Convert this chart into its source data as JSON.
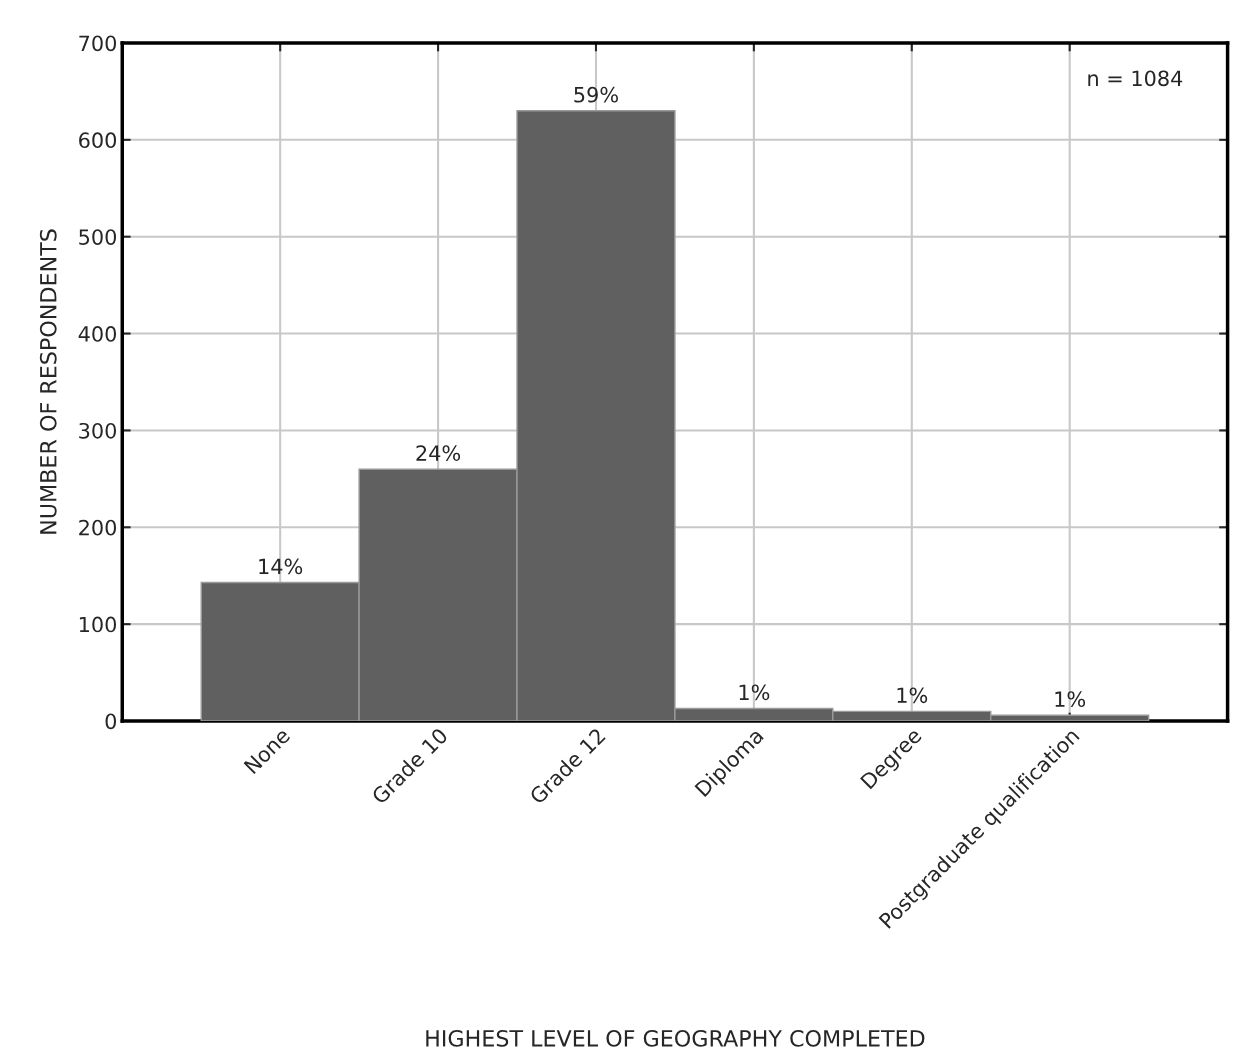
{
  "chart_data": {
    "type": "bar",
    "xlabel": "HIGHEST LEVEL OF GEOGRAPHY COMPLETED",
    "ylabel": "NUMBER OF RESPONDENTS",
    "categories": [
      "None",
      "Grade 10",
      "Grade 12",
      "Diploma",
      "Degree",
      "Postgraduate qualification"
    ],
    "values": [
      143,
      260,
      630,
      13,
      10,
      6
    ],
    "color": "#606060",
    "ylim": [
      0,
      700
    ],
    "yticks": [
      0,
      100,
      200,
      300,
      400,
      500,
      600,
      700
    ],
    "grid": true,
    "legend": false,
    "annotations": [
      "n = 1084",
      {
        "text": "14%",
        "x": "None",
        "y": 143
      },
      {
        "text": "24%",
        "x": "Grade 10",
        "y": 260
      },
      {
        "text": "59%",
        "x": "Grade 12",
        "y": 630
      },
      {
        "text": "1%",
        "x": "Diploma",
        "y": 13
      },
      {
        "text": "1%",
        "x": "Degree",
        "y": 10
      },
      {
        "text": "1%",
        "x": "Postgraduate qualification",
        "y": 6
      }
    ]
  }
}
